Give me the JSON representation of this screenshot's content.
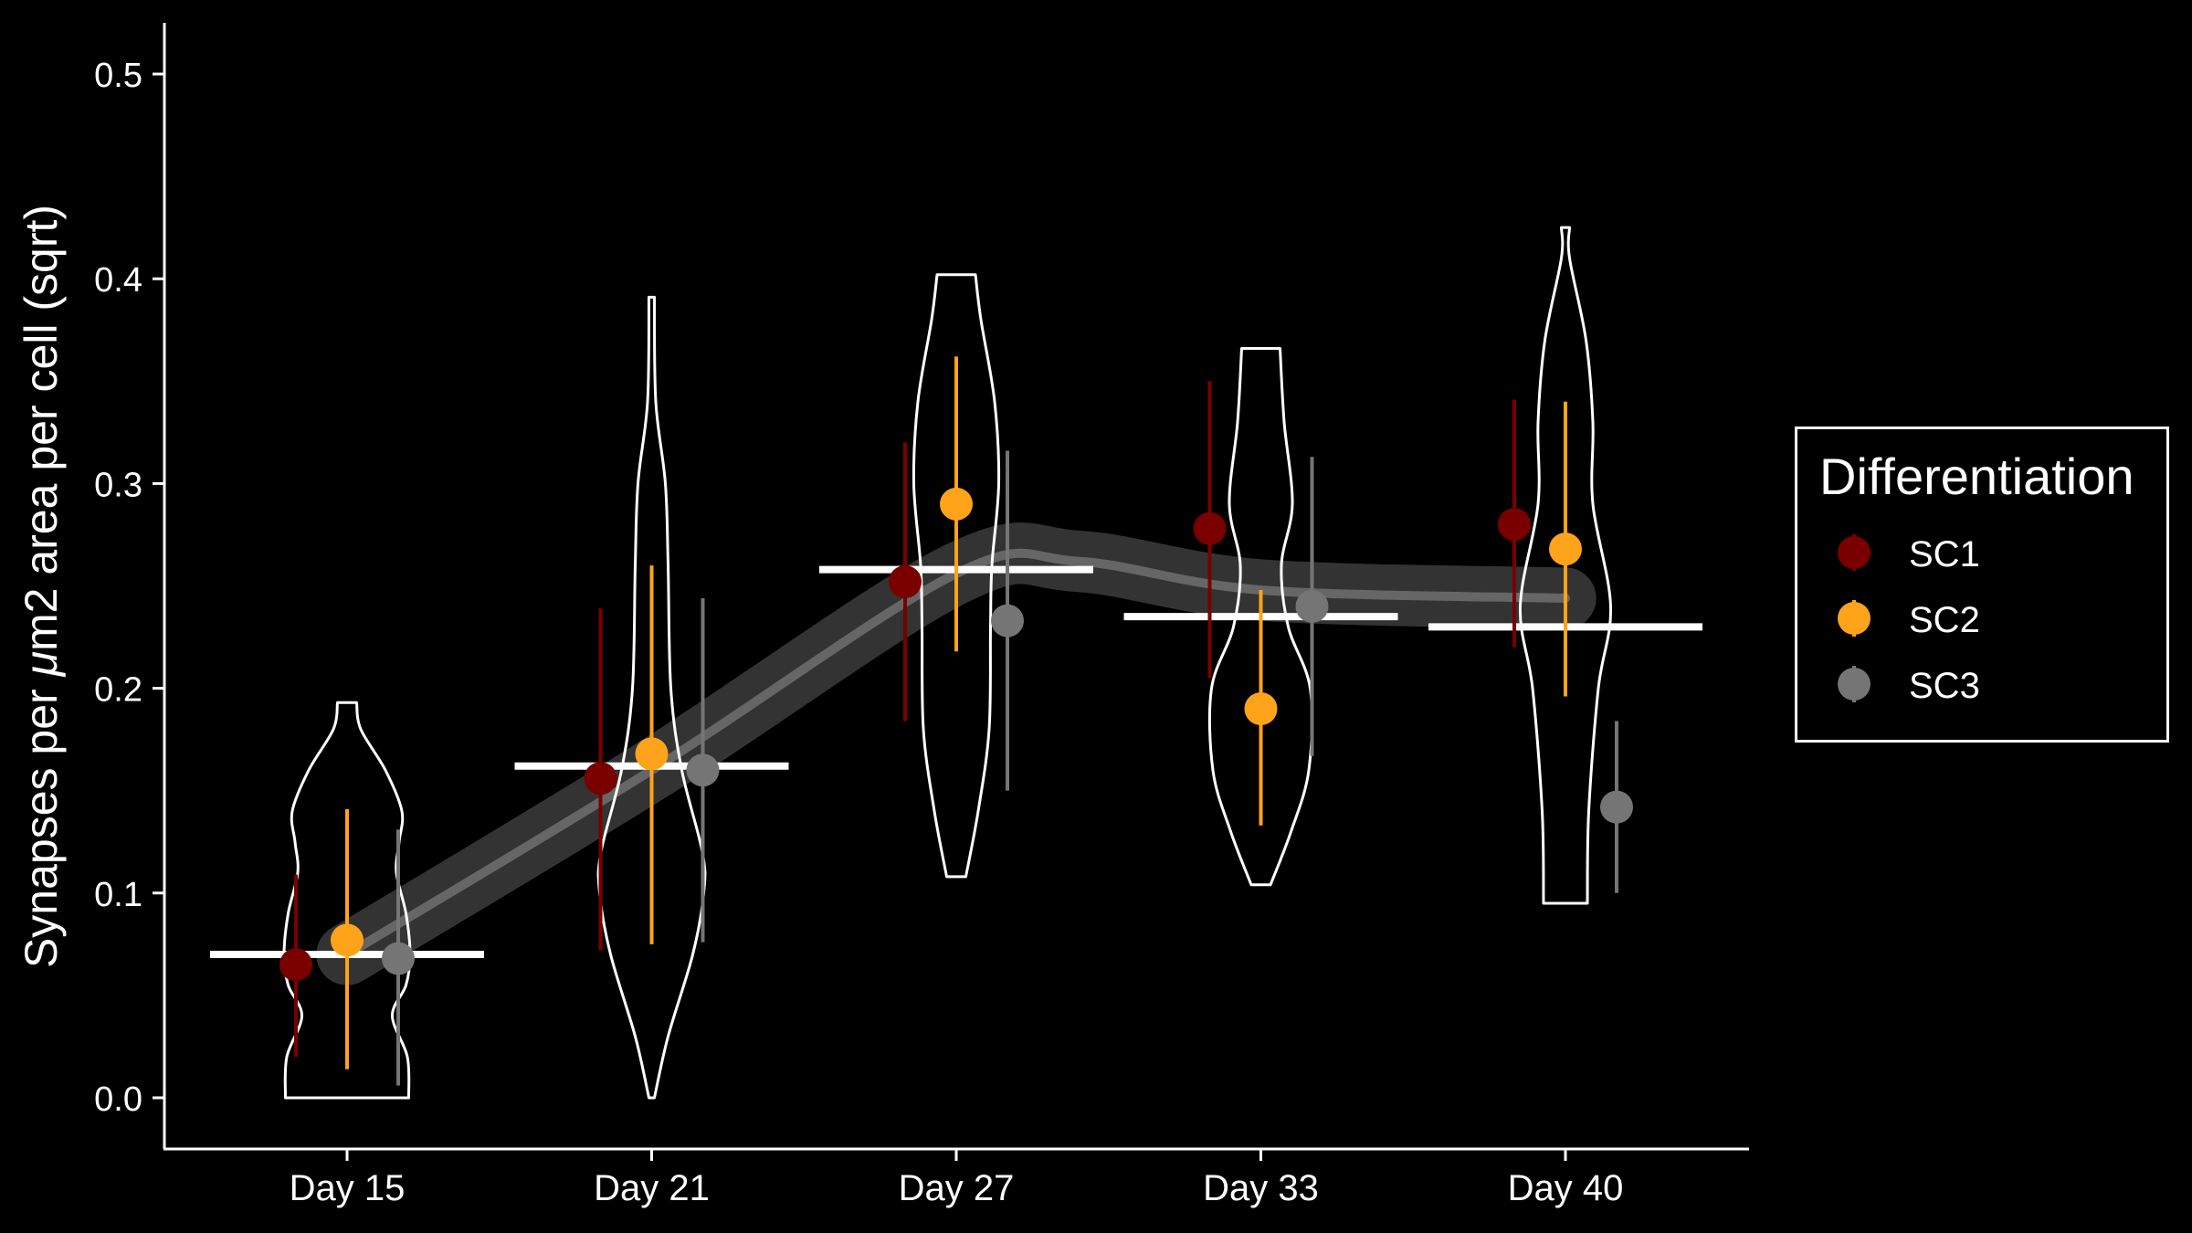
{
  "chart_data": {
    "type": "violin",
    "xlabel": "",
    "ylabel": {
      "before": "Synapses per ",
      "italic": "μ",
      "after": "m2 area per cell (sqrt)"
    },
    "ylim": [
      -0.025,
      0.525
    ],
    "yticks": [
      "0.0",
      "0.1",
      "0.2",
      "0.3",
      "0.4",
      "0.5"
    ],
    "ytick_values": [
      0.0,
      0.1,
      0.2,
      0.3,
      0.4,
      0.5
    ],
    "categories": [
      "Day 15",
      "Day 21",
      "Day 27",
      "Day 33",
      "Day 40"
    ],
    "grid": false,
    "legend": {
      "title": "Differentiation",
      "placement": "right"
    },
    "colors": {
      "background": "#000000",
      "foreground": "#ffffff",
      "trend": "#666666",
      "trend_band": "#333333"
    },
    "series": [
      {
        "name": "SC1",
        "color": "#7a0000",
        "points": [
          {
            "mean": 0.065,
            "low": 0.02,
            "high": 0.109
          },
          {
            "mean": 0.156,
            "low": 0.072,
            "high": 0.239
          },
          {
            "mean": 0.252,
            "low": 0.184,
            "high": 0.32
          },
          {
            "mean": 0.278,
            "low": 0.205,
            "high": 0.35
          },
          {
            "mean": 0.28,
            "low": 0.22,
            "high": 0.341
          }
        ]
      },
      {
        "name": "SC2",
        "color": "#ffa31a",
        "points": [
          {
            "mean": 0.077,
            "low": 0.014,
            "high": 0.141
          },
          {
            "mean": 0.168,
            "low": 0.075,
            "high": 0.26
          },
          {
            "mean": 0.29,
            "low": 0.218,
            "high": 0.362
          },
          {
            "mean": 0.19,
            "low": 0.133,
            "high": 0.248
          },
          {
            "mean": 0.268,
            "low": 0.196,
            "high": 0.34
          }
        ]
      },
      {
        "name": "SC3",
        "color": "#757575",
        "points": [
          {
            "mean": 0.068,
            "low": 0.006,
            "high": 0.131
          },
          {
            "mean": 0.16,
            "low": 0.076,
            "high": 0.244
          },
          {
            "mean": 0.233,
            "low": 0.15,
            "high": 0.316
          },
          {
            "mean": 0.24,
            "low": 0.167,
            "high": 0.313
          },
          {
            "mean": 0.142,
            "low": 0.1,
            "high": 0.184
          }
        ]
      }
    ],
    "group_means": [
      0.07,
      0.162,
      0.258,
      0.235,
      0.23
    ],
    "violins": [
      {
        "profile": [
          [
            0.0,
            0.45
          ],
          [
            0.02,
            0.44
          ],
          [
            0.04,
            0.33
          ],
          [
            0.055,
            0.43
          ],
          [
            0.07,
            0.46
          ],
          [
            0.09,
            0.43
          ],
          [
            0.11,
            0.36
          ],
          [
            0.125,
            0.38
          ],
          [
            0.14,
            0.4
          ],
          [
            0.16,
            0.28
          ],
          [
            0.18,
            0.1
          ],
          [
            0.193,
            0.07
          ]
        ]
      },
      {
        "profile": [
          [
            0.0,
            0.02
          ],
          [
            0.03,
            0.12
          ],
          [
            0.07,
            0.3
          ],
          [
            0.1,
            0.38
          ],
          [
            0.12,
            0.37
          ],
          [
            0.16,
            0.22
          ],
          [
            0.2,
            0.14
          ],
          [
            0.26,
            0.12
          ],
          [
            0.3,
            0.1
          ],
          [
            0.34,
            0.03
          ],
          [
            0.391,
            0.02
          ]
        ]
      },
      {
        "profile": [
          [
            0.108,
            0.07
          ],
          [
            0.14,
            0.16
          ],
          [
            0.18,
            0.24
          ],
          [
            0.23,
            0.25
          ],
          [
            0.26,
            0.26
          ],
          [
            0.3,
            0.31
          ],
          [
            0.34,
            0.28
          ],
          [
            0.38,
            0.18
          ],
          [
            0.402,
            0.14
          ]
        ]
      },
      {
        "profile": [
          [
            0.104,
            0.07
          ],
          [
            0.13,
            0.22
          ],
          [
            0.16,
            0.35
          ],
          [
            0.2,
            0.36
          ],
          [
            0.23,
            0.2
          ],
          [
            0.26,
            0.15
          ],
          [
            0.29,
            0.23
          ],
          [
            0.33,
            0.17
          ],
          [
            0.366,
            0.14
          ]
        ]
      },
      {
        "profile": [
          [
            0.095,
            0.16
          ],
          [
            0.14,
            0.17
          ],
          [
            0.2,
            0.24
          ],
          [
            0.24,
            0.33
          ],
          [
            0.29,
            0.2
          ],
          [
            0.33,
            0.2
          ],
          [
            0.37,
            0.15
          ],
          [
            0.41,
            0.03
          ],
          [
            0.425,
            0.03
          ]
        ]
      }
    ],
    "trend": {
      "x": [
        0,
        1,
        2,
        2.4,
        3,
        4
      ],
      "y": [
        0.07,
        0.16,
        0.256,
        0.262,
        0.248,
        0.244
      ],
      "band": 0.015
    }
  }
}
